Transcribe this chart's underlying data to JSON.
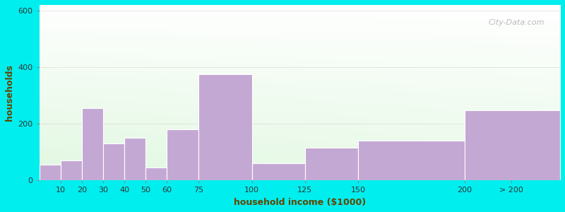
{
  "xlabel": "household income ($1000)",
  "ylabel": "households",
  "title_fontsize": 12,
  "subtitle_fontsize": 10,
  "axis_label_fontsize": 9,
  "tick_fontsize": 8,
  "background_color": "#00EEEE",
  "bar_color": "#c4a8d4",
  "ylim": [
    0,
    620
  ],
  "yticks": [
    0,
    200,
    400,
    600
  ],
  "tick_labels": [
    "10",
    "20",
    "30",
    "40",
    "50",
    "60",
    "75",
    "100",
    "125",
    "150",
    "200",
    "> 200"
  ],
  "values": [
    55,
    70,
    255,
    130,
    150,
    45,
    180,
    375,
    60,
    115,
    140,
    248
  ],
  "left_edges": [
    0,
    10,
    20,
    30,
    40,
    50,
    60,
    75,
    100,
    125,
    150,
    200
  ],
  "right_edges": [
    10,
    20,
    30,
    40,
    50,
    60,
    75,
    100,
    125,
    150,
    200,
    245
  ],
  "tick_positions": [
    10,
    20,
    30,
    40,
    50,
    60,
    75,
    100,
    125,
    150,
    200,
    222
  ],
  "xlim": [
    0,
    245
  ],
  "title_color": "#222222",
  "subtitle_color": "#008899",
  "label_color": "#664400",
  "tick_color": "#333333",
  "watermark": "City-Data.com",
  "watermark_color": "#aaaaaa",
  "grid_color": "#dddddd"
}
